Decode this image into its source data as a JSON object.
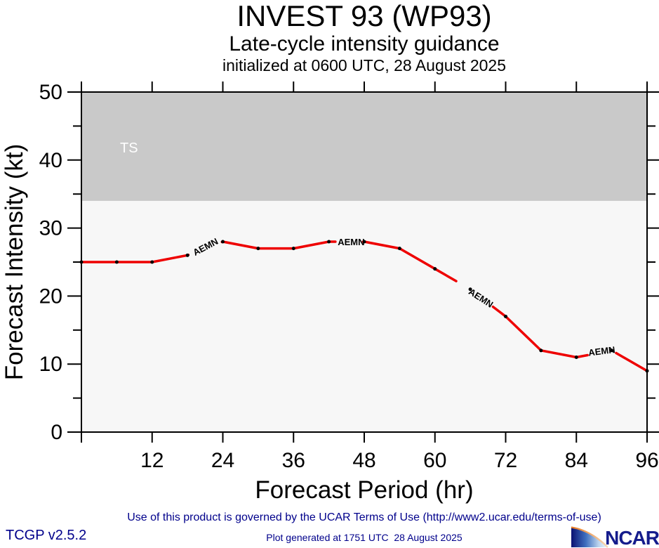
{
  "header": {
    "title": "INVEST 93 (WP93)",
    "subtitle": "Late-cycle intensity guidance",
    "initialization": "initialized at 0600 UTC, 28 August 2025"
  },
  "chart_data": {
    "type": "line",
    "title": "INVEST 93 (WP93)",
    "subtitle": "Late-cycle intensity guidance",
    "initialized": "initialized at 0600 UTC, 28 August 2025",
    "xlabel": "Forecast Period (hr)",
    "ylabel": "Forecast Intensity (kt)",
    "xlim": [
      0,
      96
    ],
    "ylim": [
      0,
      50
    ],
    "x_major_ticks": [
      12,
      24,
      36,
      48,
      60,
      72,
      84,
      96
    ],
    "x_tick_marks": [
      0,
      12,
      24,
      36,
      48,
      60,
      72,
      84,
      96
    ],
    "y_major_ticks": [
      0,
      10,
      20,
      30,
      40,
      50
    ],
    "y_minor_ticks": [
      5,
      15,
      25,
      35,
      45
    ],
    "grid": false,
    "legend": "inline labels on curve",
    "plot_bg": "#f7f7f7",
    "threshold_bands": [
      {
        "label": "TS",
        "from_kt": 34,
        "to_kt": 50,
        "color": "#c9c9c9",
        "label_color": "#ffffff"
      }
    ],
    "series": [
      {
        "name": "AEMN",
        "color": "#ee0000",
        "marker_color": "#000000",
        "x": [
          0,
          6,
          12,
          18,
          24,
          30,
          36,
          42,
          48,
          54,
          60,
          66,
          72,
          78,
          84,
          90,
          96
        ],
        "values": [
          25,
          25,
          25,
          26,
          28,
          27,
          27,
          28,
          28,
          27,
          24,
          21,
          17,
          12,
          11,
          12,
          9
        ],
        "label_gaps": [
          [
            18.15,
            23.85
          ],
          [
            43.1,
            47.8
          ],
          [
            63.6,
            69.85
          ],
          [
            85.9,
            90.75
          ]
        ],
        "inline_labels": [
          {
            "text": "AEMN",
            "hr": 19.3,
            "kt": 25.9,
            "angle": -28
          },
          {
            "text": "AEMN",
            "hr": 43.5,
            "kt": 27.5,
            "angle": 0
          },
          {
            "text": "AEMN",
            "hr": 65.6,
            "kt": 20.4,
            "angle": 33
          },
          {
            "text": "AEMN",
            "hr": 86.1,
            "kt": 11.2,
            "angle": -7
          }
        ]
      }
    ]
  },
  "footer": {
    "terms": "Use of this product is governed by the UCAR Terms of Use (http://www2.ucar.edu/terms-of-use)",
    "version": "TCGP v2.5.2",
    "generated": "Plot generated at 1751 UTC  28 August 2025",
    "logo_text": "NCAR"
  },
  "colors": {
    "line_red": "#ee0000",
    "band_gray": "#c9c9c9",
    "plot_bg": "#f7f7f7",
    "axis_black": "#000000",
    "footer_navy": "#00008b",
    "ncar_navy": "#151c8c",
    "logo_orange": "#e8781e"
  }
}
